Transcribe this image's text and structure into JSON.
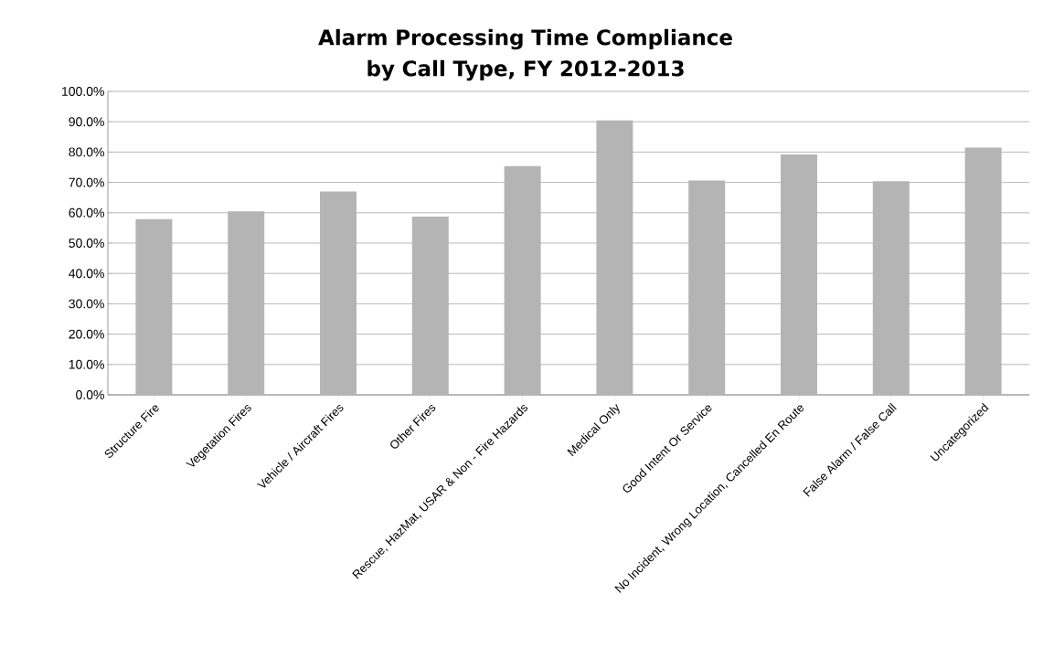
{
  "chart_data": {
    "type": "bar",
    "title": "Alarm Processing Time Compliance by Call Type, FY 2012-2013",
    "categories": [
      "Structure Fire",
      "Vegetation Fires",
      "Vehicle / Aircraft Fires",
      "Other Fires",
      "Rescue, HazMat, USAR & Non - Fire Hazards",
      "Medical Only",
      "Good Intent Or Service",
      "No Incident, Wrong Location, Cancelled En Route",
      "False Alarm / False Call",
      "Uncategorized"
    ],
    "values": [
      57.9,
      60.5,
      67,
      58.7,
      75.4,
      90.5,
      70.6,
      79.2,
      70.4,
      81.5
    ],
    "color": "#b4b4b4",
    "ylim": [
      0,
      100
    ],
    "yticks": [
      {
        "value": 0,
        "label": "0.0%"
      },
      {
        "value": 10,
        "label": "10.0%"
      },
      {
        "value": 20,
        "label": "20.0%"
      },
      {
        "value": 30,
        "label": "30.0%"
      },
      {
        "value": 40,
        "label": "40.0%"
      },
      {
        "value": 50,
        "label": "50.0%"
      },
      {
        "value": 60,
        "label": "60.0%"
      },
      {
        "value": 70,
        "label": "70.0%"
      },
      {
        "value": 80,
        "label": "80.0%"
      },
      {
        "value": 90,
        "label": "90.0%"
      },
      {
        "value": 100,
        "label": "100.0%"
      }
    ],
    "grid": "y"
  }
}
